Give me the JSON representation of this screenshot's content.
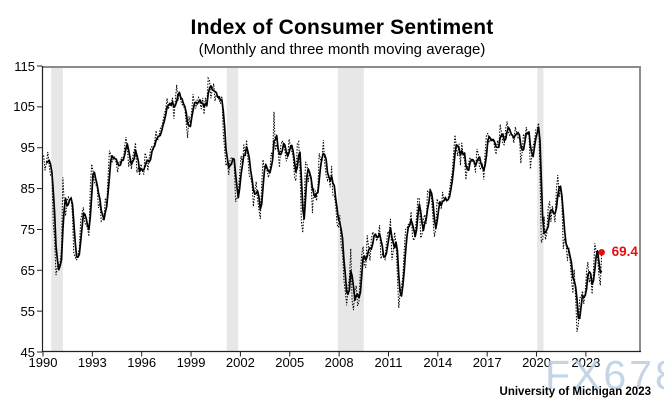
{
  "chart_data": {
    "type": "line",
    "title": "Index of Consumer Sentiment",
    "subtitle": "(Monthly and three month moving average)",
    "source": "University of Michigan 2023",
    "watermark": "FX678",
    "ylabel": "",
    "xlabel": "",
    "ylim": [
      45,
      115
    ],
    "xlim": [
      1989.94,
      2026.35
    ],
    "y_ticks": [
      115,
      105,
      95,
      85,
      75,
      65,
      55,
      45
    ],
    "x_ticks": [
      1990,
      1993,
      1996,
      1999,
      2002,
      2005,
      2008,
      2011,
      2014,
      2017,
      2020,
      2023
    ],
    "grid": false,
    "legend_position": "none",
    "recession_bands": [
      [
        1990.5,
        1991.21
      ],
      [
        2001.17,
        2001.87
      ],
      [
        2007.92,
        2009.5
      ],
      [
        2020.04,
        2020.42
      ]
    ],
    "band_color": "#e7e7e7",
    "line_color": "#000000",
    "last_point": {
      "label": "69.4",
      "value": 69.4,
      "color": "#e60f0f"
    },
    "series": [
      {
        "name": "Monthly",
        "style": "dotted",
        "start_year": 1990,
        "start_month": 1,
        "values": [
          93.0,
          89.5,
          91.3,
          93.9,
          90.6,
          88.3,
          88.2,
          76.4,
          72.8,
          63.9,
          66.0,
          65.5,
          66.8,
          70.4,
          87.7,
          81.8,
          78.3,
          82.1,
          82.9,
          82.0,
          83.0,
          78.3,
          69.1,
          68.2,
          67.5,
          68.8,
          70.3,
          77.2,
          79.2,
          80.4,
          76.6,
          76.1,
          75.5,
          73.3,
          85.3,
          91.0,
          89.3,
          86.6,
          85.9,
          85.6,
          80.3,
          81.5,
          77.0,
          77.3,
          77.9,
          82.7,
          81.2,
          88.2,
          94.3,
          93.2,
          91.5,
          92.6,
          92.8,
          91.2,
          89.0,
          91.7,
          91.5,
          92.7,
          91.6,
          95.1,
          97.6,
          95.1,
          90.3,
          92.5,
          89.8,
          92.7,
          94.4,
          96.2,
          88.9,
          90.2,
          88.2,
          91.0,
          89.3,
          88.5,
          93.7,
          92.7,
          89.4,
          92.4,
          94.7,
          95.3,
          94.7,
          96.5,
          99.2,
          96.9,
          97.4,
          99.7,
          100.0,
          101.4,
          103.2,
          104.5,
          107.1,
          104.4,
          106.0,
          105.6,
          107.2,
          102.1,
          106.6,
          110.4,
          106.5,
          108.7,
          106.5,
          105.6,
          105.2,
          104.4,
          100.9,
          97.4,
          102.7,
          100.5,
          103.9,
          108.1,
          105.7,
          104.6,
          106.8,
          107.3,
          106.0,
          104.5,
          107.2,
          103.2,
          107.2,
          105.4,
          112.0,
          111.3,
          107.1,
          109.2,
          110.7,
          106.4,
          108.3,
          107.3,
          106.8,
          105.8,
          107.6,
          98.4,
          94.7,
          90.6,
          91.5,
          88.4,
          92.0,
          92.6,
          92.4,
          91.5,
          81.8,
          82.7,
          83.9,
          88.8,
          93.0,
          90.7,
          95.7,
          93.0,
          96.9,
          92.4,
          88.1,
          87.6,
          86.1,
          80.6,
          84.2,
          86.7,
          82.4,
          79.9,
          77.6,
          86.0,
          92.1,
          89.7,
          90.9,
          89.3,
          87.7,
          89.6,
          93.7,
          92.6,
          103.8,
          94.4,
          95.8,
          94.2,
          90.2,
          95.6,
          96.7,
          95.9,
          94.2,
          91.7,
          92.8,
          97.1,
          95.5,
          94.1,
          92.6,
          87.7,
          86.9,
          96.0,
          96.5,
          89.1,
          76.9,
          74.2,
          81.6,
          91.5,
          91.2,
          86.7,
          88.9,
          87.4,
          79.1,
          84.9,
          84.7,
          82.0,
          85.4,
          93.6,
          92.1,
          91.7,
          96.9,
          91.3,
          88.4,
          87.1,
          88.3,
          85.3,
          90.4,
          83.4,
          83.4,
          80.9,
          76.1,
          75.5,
          78.4,
          70.8,
          69.5,
          62.6,
          59.8,
          56.4,
          61.2,
          63.0,
          70.3,
          57.6,
          55.3,
          60.1,
          61.2,
          56.3,
          57.3,
          65.1,
          68.7,
          70.8,
          66.0,
          65.7,
          73.5,
          70.6,
          67.4,
          72.5,
          74.4,
          73.6,
          73.6,
          72.2,
          73.6,
          76.0,
          67.8,
          68.9,
          68.2,
          67.7,
          71.6,
          74.5,
          74.2,
          77.5,
          67.5,
          69.8,
          74.3,
          71.5,
          63.7,
          55.8,
          59.5,
          60.8,
          63.7,
          69.9,
          75.0,
          75.3,
          76.2,
          76.4,
          79.3,
          73.2,
          72.3,
          74.3,
          78.3,
          82.6,
          82.7,
          72.9,
          73.8,
          77.6,
          78.6,
          76.4,
          84.5,
          84.1,
          85.1,
          82.1,
          77.5,
          73.2,
          75.1,
          82.5,
          81.2,
          81.6,
          80.0,
          84.1,
          81.9,
          82.5,
          81.8,
          82.5,
          84.6,
          86.9,
          88.8,
          93.6,
          98.1,
          95.4,
          93.0,
          95.9,
          90.7,
          96.1,
          93.1,
          91.9,
          87.2,
          90.0,
          91.3,
          92.6,
          92.0,
          91.7,
          91.0,
          89.0,
          94.7,
          93.5,
          90.0,
          89.8,
          91.2,
          87.2,
          93.8,
          98.2,
          98.5,
          96.3,
          96.9,
          97.0,
          97.1,
          95.0,
          93.4,
          96.8,
          95.1,
          100.7,
          98.5,
          95.9,
          95.7,
          99.7,
          101.4,
          98.8,
          98.0,
          98.2,
          97.9,
          96.2,
          100.1,
          98.6,
          97.5,
          98.3,
          91.2,
          93.8,
          98.4,
          97.2,
          100.0,
          98.2,
          98.4,
          89.8,
          93.2,
          95.5,
          96.8,
          99.3,
          99.8,
          101.0,
          89.1,
          71.8,
          72.3,
          78.1,
          72.5,
          74.1,
          80.4,
          81.8,
          76.9,
          80.7,
          79.0,
          76.8,
          84.9,
          88.3,
          82.9,
          85.5,
          81.2,
          70.3,
          72.8,
          71.7,
          67.4,
          70.6,
          67.2,
          62.8,
          59.4,
          65.2,
          58.4,
          50.0,
          51.5,
          58.2,
          58.6,
          59.9,
          56.8,
          59.7,
          64.9,
          67.0,
          62.0,
          63.5,
          59.2,
          64.4,
          71.6,
          69.5,
          68.1,
          63.8,
          61.3,
          69.4
        ]
      },
      {
        "name": "Three month moving average",
        "style": "solid",
        "derived": "3mo_avg_of_monthly"
      }
    ]
  }
}
